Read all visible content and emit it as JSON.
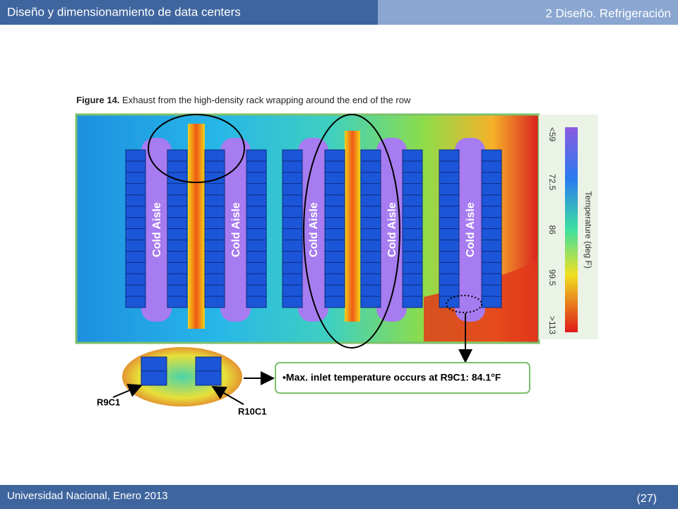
{
  "header": {
    "title": "Diseño y dimensionamiento de data centers",
    "section": "2 Diseño. Refrigeración"
  },
  "figure": {
    "caption_label": "Figure 14.",
    "caption": "Exhaust from the high-density rack wrapping around the end of the row",
    "aisle_labels": [
      "Cold Aisle",
      "Cold Aisle",
      "Cold Aisle",
      "Cold Aisle",
      "Cold Aisle"
    ],
    "colorbar": {
      "title": "Temperature (deg F)",
      "ticks": [
        "<59",
        "72.5",
        "86",
        "99.5",
        ">113"
      ]
    },
    "callout": "•Max. inlet temperature occurs at R9C1: 84.1°F",
    "rack_labels": [
      "R9C1",
      "R10C1"
    ]
  },
  "footer": {
    "text": "Universidad Nacional, Enero 2013",
    "page": "(27)"
  }
}
